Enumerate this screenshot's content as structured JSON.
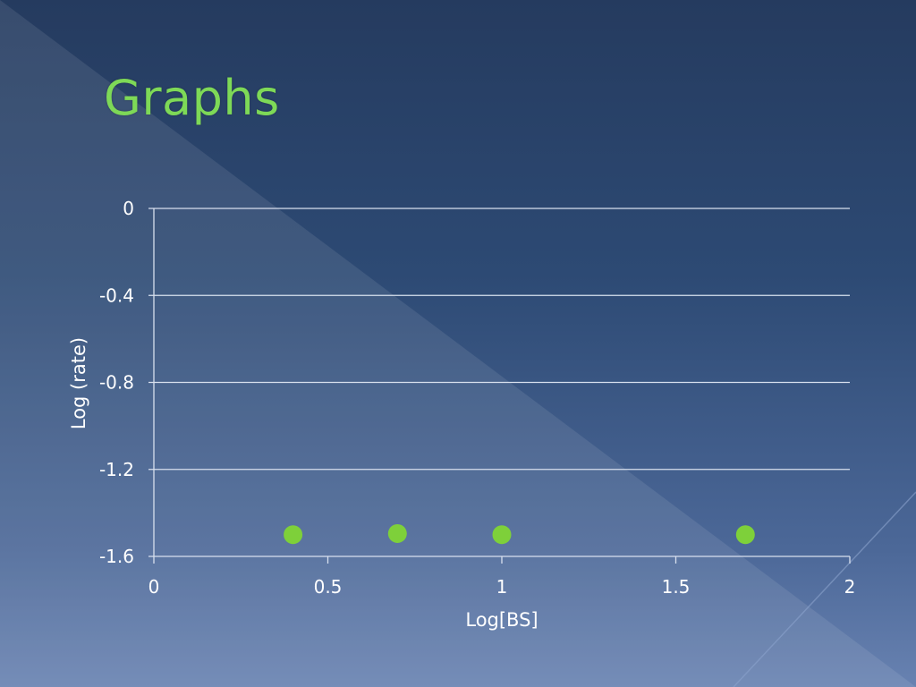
{
  "slide": {
    "title": "Graphs",
    "title_color": "#7ed957"
  },
  "chart_data": {
    "type": "scatter",
    "title": "",
    "xlabel": "Log[BS]",
    "ylabel": "Log (rate)",
    "xlim": [
      0,
      2
    ],
    "ylim": [
      -1.6,
      0
    ],
    "x_ticks": [
      "0",
      "0.5",
      "1",
      "1.5",
      "2"
    ],
    "y_ticks": [
      "0",
      "-0.4",
      "-0.8",
      "-1.2",
      "-1.6"
    ],
    "grid": true,
    "legend": "none",
    "marker_color": "#7ed03a",
    "series": [
      {
        "points": [
          {
            "x": 0.4,
            "y": -1.5
          },
          {
            "x": 0.7,
            "y": -1.495
          },
          {
            "x": 1.0,
            "y": -1.5
          },
          {
            "x": 1.7,
            "y": -1.5
          }
        ]
      }
    ]
  }
}
